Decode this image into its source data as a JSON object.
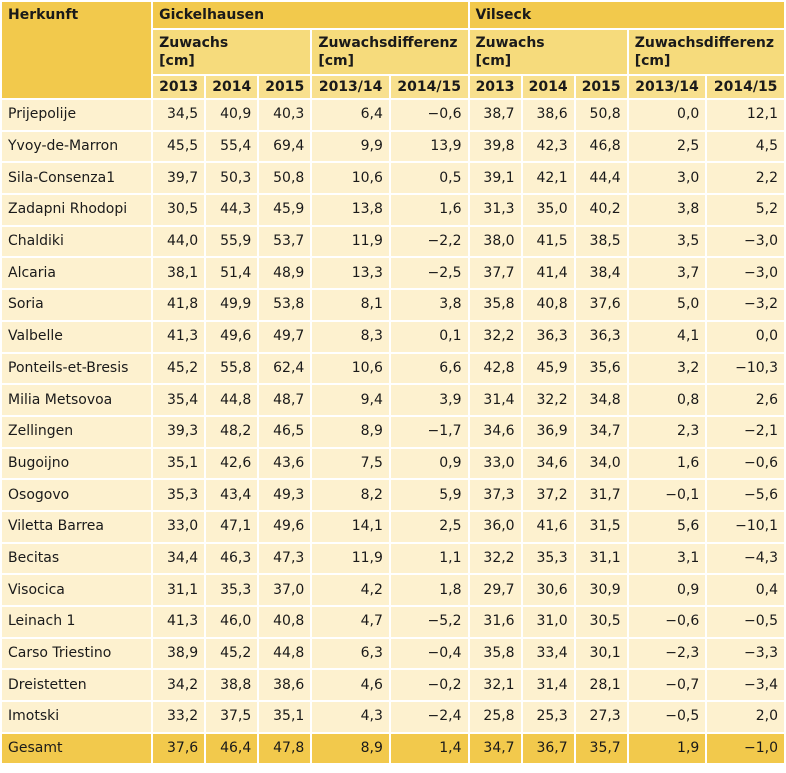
{
  "table": {
    "header": {
      "herkunft": "Herkunft",
      "sites": [
        {
          "name": "Gickelhausen",
          "zuwachs": "Zuwachs\n[cm]",
          "diff": "Zuwachsdifferenz\n[cm]"
        },
        {
          "name": "Vilseck",
          "zuwachs": "Zuwachs\n[cm]",
          "diff": "Zuwachsdifferenz\n[cm]"
        }
      ],
      "years": [
        "2013",
        "2014",
        "2015"
      ],
      "diffs": [
        "2013/14",
        "2014/15"
      ]
    },
    "rows": [
      {
        "name": "Prijepolije",
        "cells": [
          "34,5",
          "40,9",
          "40,3",
          "6,4",
          "−0,6",
          "38,7",
          "38,6",
          "50,8",
          "0,0",
          "12,1"
        ]
      },
      {
        "name": "Yvoy-de-Marron",
        "cells": [
          "45,5",
          "55,4",
          "69,4",
          "9,9",
          "13,9",
          "39,8",
          "42,3",
          "46,8",
          "2,5",
          "4,5"
        ]
      },
      {
        "name": "Sila-Consenza1",
        "cells": [
          "39,7",
          "50,3",
          "50,8",
          "10,6",
          "0,5",
          "39,1",
          "42,1",
          "44,4",
          "3,0",
          "2,2"
        ]
      },
      {
        "name": "Zadapni Rhodopi",
        "cells": [
          "30,5",
          "44,3",
          "45,9",
          "13,8",
          "1,6",
          "31,3",
          "35,0",
          "40,2",
          "3,8",
          "5,2"
        ]
      },
      {
        "name": "Chaldiki",
        "cells": [
          "44,0",
          "55,9",
          "53,7",
          "11,9",
          "−2,2",
          "38,0",
          "41,5",
          "38,5",
          "3,5",
          "−3,0"
        ]
      },
      {
        "name": "Alcaria",
        "cells": [
          "38,1",
          "51,4",
          "48,9",
          "13,3",
          "−2,5",
          "37,7",
          "41,4",
          "38,4",
          "3,7",
          "−3,0"
        ]
      },
      {
        "name": "Soria",
        "cells": [
          "41,8",
          "49,9",
          "53,8",
          "8,1",
          "3,8",
          "35,8",
          "40,8",
          "37,6",
          "5,0",
          "−3,2"
        ]
      },
      {
        "name": "Valbelle",
        "cells": [
          "41,3",
          "49,6",
          "49,7",
          "8,3",
          "0,1",
          "32,2",
          "36,3",
          "36,3",
          "4,1",
          "0,0"
        ]
      },
      {
        "name": "Ponteils-et-Bresis",
        "cells": [
          "45,2",
          "55,8",
          "62,4",
          "10,6",
          "6,6",
          "42,8",
          "45,9",
          "35,6",
          "3,2",
          "−10,3"
        ]
      },
      {
        "name": "Milia Metsovoa",
        "cells": [
          "35,4",
          "44,8",
          "48,7",
          "9,4",
          "3,9",
          "31,4",
          "32,2",
          "34,8",
          "0,8",
          "2,6"
        ]
      },
      {
        "name": "Zellingen",
        "cells": [
          "39,3",
          "48,2",
          "46,5",
          "8,9",
          "−1,7",
          "34,6",
          "36,9",
          "34,7",
          "2,3",
          "−2,1"
        ]
      },
      {
        "name": "Bugoijno",
        "cells": [
          "35,1",
          "42,6",
          "43,6",
          "7,5",
          "0,9",
          "33,0",
          "34,6",
          "34,0",
          "1,6",
          "−0,6"
        ]
      },
      {
        "name": "Osogovo",
        "cells": [
          "35,3",
          "43,4",
          "49,3",
          "8,2",
          "5,9",
          "37,3",
          "37,2",
          "31,7",
          "−0,1",
          "−5,6"
        ]
      },
      {
        "name": "Viletta Barrea",
        "cells": [
          "33,0",
          "47,1",
          "49,6",
          "14,1",
          "2,5",
          "36,0",
          "41,6",
          "31,5",
          "5,6",
          "−10,1"
        ]
      },
      {
        "name": "Becitas",
        "cells": [
          "34,4",
          "46,3",
          "47,3",
          "11,9",
          "1,1",
          "32,2",
          "35,3",
          "31,1",
          "3,1",
          "−4,3"
        ]
      },
      {
        "name": "Visocica",
        "cells": [
          "31,1",
          "35,3",
          "37,0",
          "4,2",
          "1,8",
          "29,7",
          "30,6",
          "30,9",
          "0,9",
          "0,4"
        ]
      },
      {
        "name": "Leinach 1",
        "cells": [
          "41,3",
          "46,0",
          "40,8",
          "4,7",
          "−5,2",
          "31,6",
          "31,0",
          "30,5",
          "−0,6",
          "−0,5"
        ]
      },
      {
        "name": "Carso Triestino",
        "cells": [
          "38,9",
          "45,2",
          "44,8",
          "6,3",
          "−0,4",
          "35,8",
          "33,4",
          "30,1",
          "−2,3",
          "−3,3"
        ]
      },
      {
        "name": "Dreistetten",
        "cells": [
          "34,2",
          "38,8",
          "38,6",
          "4,6",
          "−0,2",
          "32,1",
          "31,4",
          "28,1",
          "−0,7",
          "−3,4"
        ]
      },
      {
        "name": "Imotski",
        "cells": [
          "33,2",
          "37,5",
          "35,1",
          "4,3",
          "−2,4",
          "25,8",
          "25,3",
          "27,3",
          "−0,5",
          "2,0"
        ]
      }
    ],
    "total": {
      "name": "Gesamt",
      "cells": [
        "37,6",
        "46,4",
        "47,8",
        "8,9",
        "1,4",
        "34,7",
        "36,7",
        "35,7",
        "1,9",
        "−1,0"
      ]
    }
  }
}
